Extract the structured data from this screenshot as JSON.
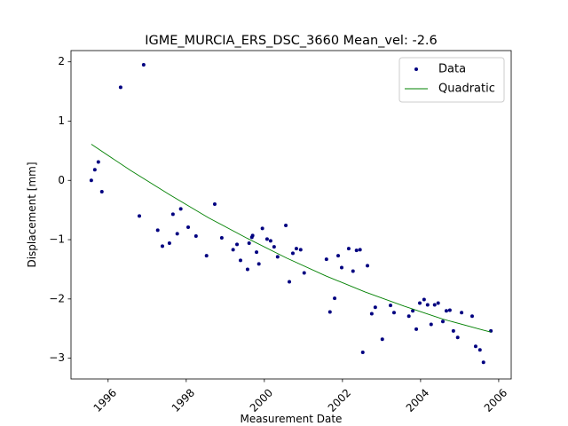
{
  "chart_data": {
    "type": "scatter",
    "title": "IGME_MURCIA_ERS_DSC_3660    Mean_vel: -2.6",
    "xlabel": "Measurement Date",
    "ylabel": "Displacement [mm]",
    "xlim": [
      1995.05,
      2006.32
    ],
    "ylim": [
      -3.35,
      2.19
    ],
    "xticks": [
      1996,
      1998,
      2000,
      2002,
      2004,
      2006
    ],
    "yticks": [
      {
        "value": -3,
        "label": "−3"
      },
      {
        "value": -2,
        "label": "−2"
      },
      {
        "value": -1,
        "label": "−1"
      },
      0,
      1,
      2
    ],
    "legend": "upper right",
    "series": [
      {
        "name": "Data",
        "kind": "marker",
        "color": "#000080",
        "x": [
          1995.57,
          1995.66,
          1995.75,
          1995.84,
          1996.32,
          1996.8,
          1996.91,
          1997.27,
          1997.39,
          1997.57,
          1997.66,
          1997.77,
          1997.86,
          1998.05,
          1998.25,
          1998.52,
          1998.73,
          1998.91,
          1999.2,
          1999.3,
          1999.39,
          1999.57,
          1999.61,
          1999.68,
          1999.7,
          1999.8,
          1999.86,
          1999.95,
          2000.07,
          2000.16,
          2000.25,
          2000.34,
          2000.55,
          2000.64,
          2000.73,
          2000.82,
          2000.93,
          2001.02,
          2001.59,
          2001.68,
          2001.8,
          2001.89,
          2001.98,
          2002.16,
          2002.27,
          2002.36,
          2002.45,
          2002.52,
          2002.64,
          2002.75,
          2002.84,
          2003.02,
          2003.23,
          2003.32,
          2003.7,
          2003.8,
          2003.89,
          2003.98,
          2004.09,
          2004.18,
          2004.27,
          2004.36,
          2004.45,
          2004.57,
          2004.66,
          2004.75,
          2004.84,
          2004.95,
          2005.05,
          2005.32,
          2005.41,
          2005.52,
          2005.61,
          2005.8
        ],
        "values": [
          0.0,
          0.18,
          0.31,
          -0.19,
          1.57,
          -0.6,
          1.95,
          -0.84,
          -1.11,
          -1.06,
          -0.57,
          -0.9,
          -0.48,
          -0.79,
          -0.94,
          -1.27,
          -0.4,
          -0.97,
          -1.17,
          -1.08,
          -1.35,
          -1.5,
          -1.06,
          -0.96,
          -0.93,
          -1.21,
          -1.41,
          -0.81,
          -0.99,
          -1.02,
          -1.12,
          -1.29,
          -0.76,
          -1.71,
          -1.23,
          -1.15,
          -1.17,
          -1.56,
          -1.33,
          -2.22,
          -1.99,
          -1.27,
          -1.47,
          -1.15,
          -1.53,
          -1.18,
          -1.17,
          -2.9,
          -1.44,
          -2.25,
          -2.14,
          -2.68,
          -2.11,
          -2.23,
          -2.29,
          -2.2,
          -2.51,
          -2.07,
          -2.01,
          -2.1,
          -2.43,
          -2.1,
          -2.07,
          -2.38,
          -2.2,
          -2.19,
          -2.54,
          -2.65,
          -2.23,
          -2.29,
          -2.8,
          -2.86,
          -3.07,
          -2.54
        ]
      },
      {
        "name": "Quadratic",
        "kind": "line",
        "color": "#008000",
        "x": [
          1995.57,
          1996.57,
          1997.57,
          1998.57,
          1999.57,
          2000.57,
          2001.57,
          2002.57,
          2003.57,
          2004.57,
          2005.57,
          2005.8
        ],
        "values": [
          0.61,
          0.17,
          -0.24,
          -0.63,
          -0.98,
          -1.31,
          -1.61,
          -1.88,
          -2.12,
          -2.34,
          -2.52,
          -2.56
        ]
      }
    ]
  }
}
